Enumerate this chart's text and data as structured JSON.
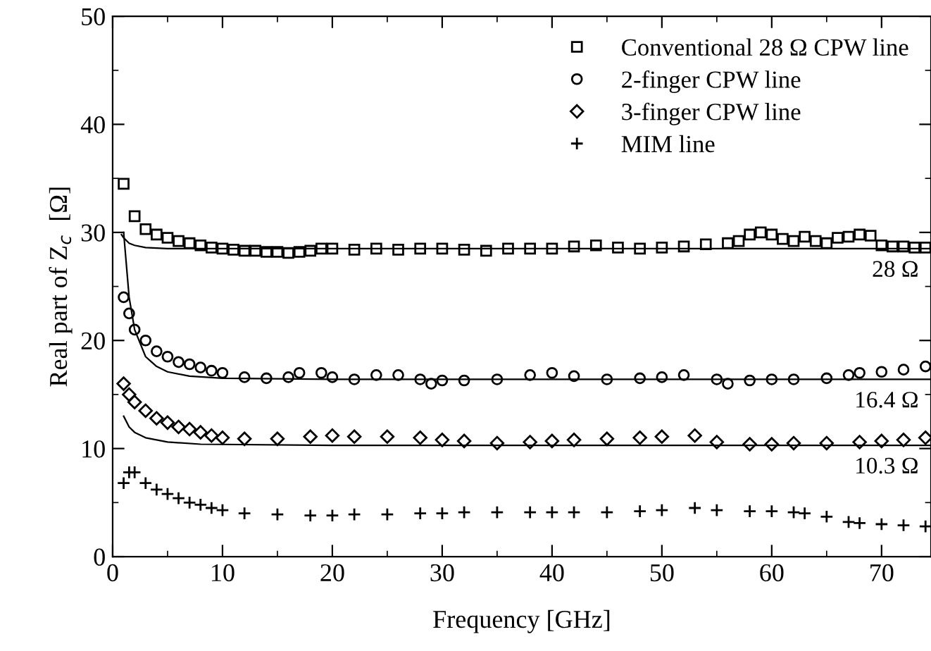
{
  "chart_data": {
    "type": "scatter",
    "xlabel": "Frequency [GHz]",
    "ylabel": "Real part of Z$_{c}$  [Ω]",
    "xlim": [
      0,
      74.5
    ],
    "ylim": [
      0,
      50
    ],
    "xticks": [
      0,
      10,
      20,
      30,
      40,
      50,
      60,
      70
    ],
    "yticks": [
      0,
      10,
      20,
      30,
      40,
      50
    ],
    "grid": false,
    "legend": "top right",
    "series": [
      {
        "name": "Conventional 28 Ω CPW line",
        "marker": "square",
        "color": "#000000",
        "x": [
          1,
          2,
          3,
          4,
          5,
          6,
          7,
          8,
          9,
          10,
          11,
          12,
          13,
          14,
          15,
          16,
          17,
          18,
          19,
          20,
          22,
          24,
          26,
          28,
          30,
          32,
          34,
          36,
          38,
          40,
          42,
          44,
          46,
          48,
          50,
          52,
          54,
          56,
          57,
          58,
          59,
          60,
          61,
          62,
          63,
          64,
          65,
          66,
          67,
          68,
          69,
          70,
          71,
          72,
          73,
          74
        ],
        "values": [
          34.5,
          31.5,
          30.3,
          29.8,
          29.5,
          29.2,
          29,
          28.8,
          28.6,
          28.5,
          28.4,
          28.3,
          28.3,
          28.2,
          28.2,
          28.1,
          28.2,
          28.3,
          28.5,
          28.5,
          28.4,
          28.5,
          28.4,
          28.5,
          28.5,
          28.4,
          28.3,
          28.5,
          28.5,
          28.5,
          28.7,
          28.8,
          28.6,
          28.5,
          28.6,
          28.7,
          28.9,
          29.0,
          29.2,
          29.8,
          30.0,
          29.8,
          29.4,
          29.2,
          29.6,
          29.2,
          29.0,
          29.5,
          29.6,
          29.8,
          29.7,
          28.8,
          28.7,
          28.7,
          28.6,
          28.6
        ]
      },
      {
        "name": "2-finger CPW line",
        "marker": "circle",
        "color": "#000000",
        "x": [
          1,
          1.5,
          2,
          3,
          4,
          5,
          6,
          7,
          8,
          9,
          10,
          12,
          14,
          16,
          17,
          19,
          20,
          22,
          24,
          26,
          28,
          29,
          30,
          32,
          35,
          38,
          40,
          42,
          45,
          48,
          50,
          52,
          55,
          56,
          58,
          60,
          62,
          65,
          67,
          68,
          70,
          72,
          74
        ],
        "values": [
          24,
          22.5,
          21,
          20,
          19,
          18.5,
          18,
          17.8,
          17.5,
          17.2,
          17,
          16.6,
          16.5,
          16.6,
          17,
          17,
          16.6,
          16.4,
          16.8,
          16.8,
          16.4,
          16,
          16.3,
          16.3,
          16.4,
          16.8,
          17,
          16.7,
          16.4,
          16.5,
          16.6,
          16.8,
          16.4,
          16,
          16.3,
          16.4,
          16.4,
          16.5,
          16.8,
          17,
          17.1,
          17.3,
          17.6
        ]
      },
      {
        "name": "3-finger CPW line",
        "marker": "diamond",
        "color": "#000000",
        "x": [
          1,
          1.5,
          2,
          3,
          4,
          5,
          6,
          7,
          8,
          9,
          10,
          12,
          15,
          18,
          20,
          22,
          25,
          28,
          30,
          32,
          35,
          38,
          40,
          42,
          45,
          48,
          50,
          53,
          55,
          58,
          60,
          62,
          65,
          68,
          70,
          72,
          74
        ],
        "values": [
          16,
          15,
          14.3,
          13.5,
          12.8,
          12.4,
          12,
          11.8,
          11.5,
          11.2,
          11,
          10.9,
          10.9,
          11.1,
          11.2,
          11.1,
          11.1,
          11,
          10.8,
          10.7,
          10.5,
          10.6,
          10.7,
          10.8,
          10.9,
          11,
          11.1,
          11.2,
          10.6,
          10.4,
          10.4,
          10.5,
          10.5,
          10.6,
          10.7,
          10.8,
          11
        ]
      },
      {
        "name": "MIM line",
        "marker": "cross",
        "color": "#000000",
        "x": [
          1,
          1.5,
          2,
          3,
          4,
          5,
          6,
          7,
          8,
          9,
          10,
          12,
          15,
          18,
          20,
          22,
          25,
          28,
          30,
          32,
          35,
          38,
          40,
          42,
          45,
          48,
          50,
          53,
          55,
          58,
          60,
          62,
          63,
          65,
          67,
          68,
          70,
          72,
          74
        ],
        "values": [
          6.8,
          7.8,
          7.8,
          6.8,
          6.2,
          5.8,
          5.4,
          5,
          4.8,
          4.5,
          4.3,
          4,
          3.9,
          3.8,
          3.8,
          3.9,
          3.9,
          4,
          4,
          4.1,
          4.1,
          4.1,
          4.1,
          4.1,
          4.1,
          4.2,
          4.3,
          4.5,
          4.3,
          4.2,
          4.2,
          4.1,
          4,
          3.7,
          3.2,
          3.1,
          3,
          2.9,
          2.8
        ]
      },
      {
        "type": "line",
        "color": "#000000",
        "x": [
          0.8,
          1,
          1.5,
          2,
          3,
          5,
          10,
          20,
          74.5
        ],
        "values": [
          29.8,
          29.5,
          29,
          28.8,
          28.6,
          28.5,
          28.5,
          28.5,
          28.5
        ]
      },
      {
        "type": "line",
        "color": "#000000",
        "x": [
          1,
          1.5,
          2,
          3,
          4,
          5,
          7,
          10,
          20,
          74.5
        ],
        "values": [
          30,
          24,
          21,
          18.5,
          17.6,
          17.1,
          16.7,
          16.5,
          16.4,
          16.4
        ]
      },
      {
        "type": "line",
        "color": "#000000",
        "x": [
          1,
          1.5,
          2,
          3,
          5,
          8,
          20,
          74.5
        ],
        "values": [
          13,
          12,
          11.5,
          11,
          10.6,
          10.4,
          10.3,
          10.3
        ]
      }
    ],
    "annotations": [
      {
        "text": "28 Ω",
        "y": 28.5
      },
      {
        "text": "16.4 Ω",
        "y": 16.4
      },
      {
        "text": "10.3 Ω",
        "y": 10.3
      }
    ]
  }
}
